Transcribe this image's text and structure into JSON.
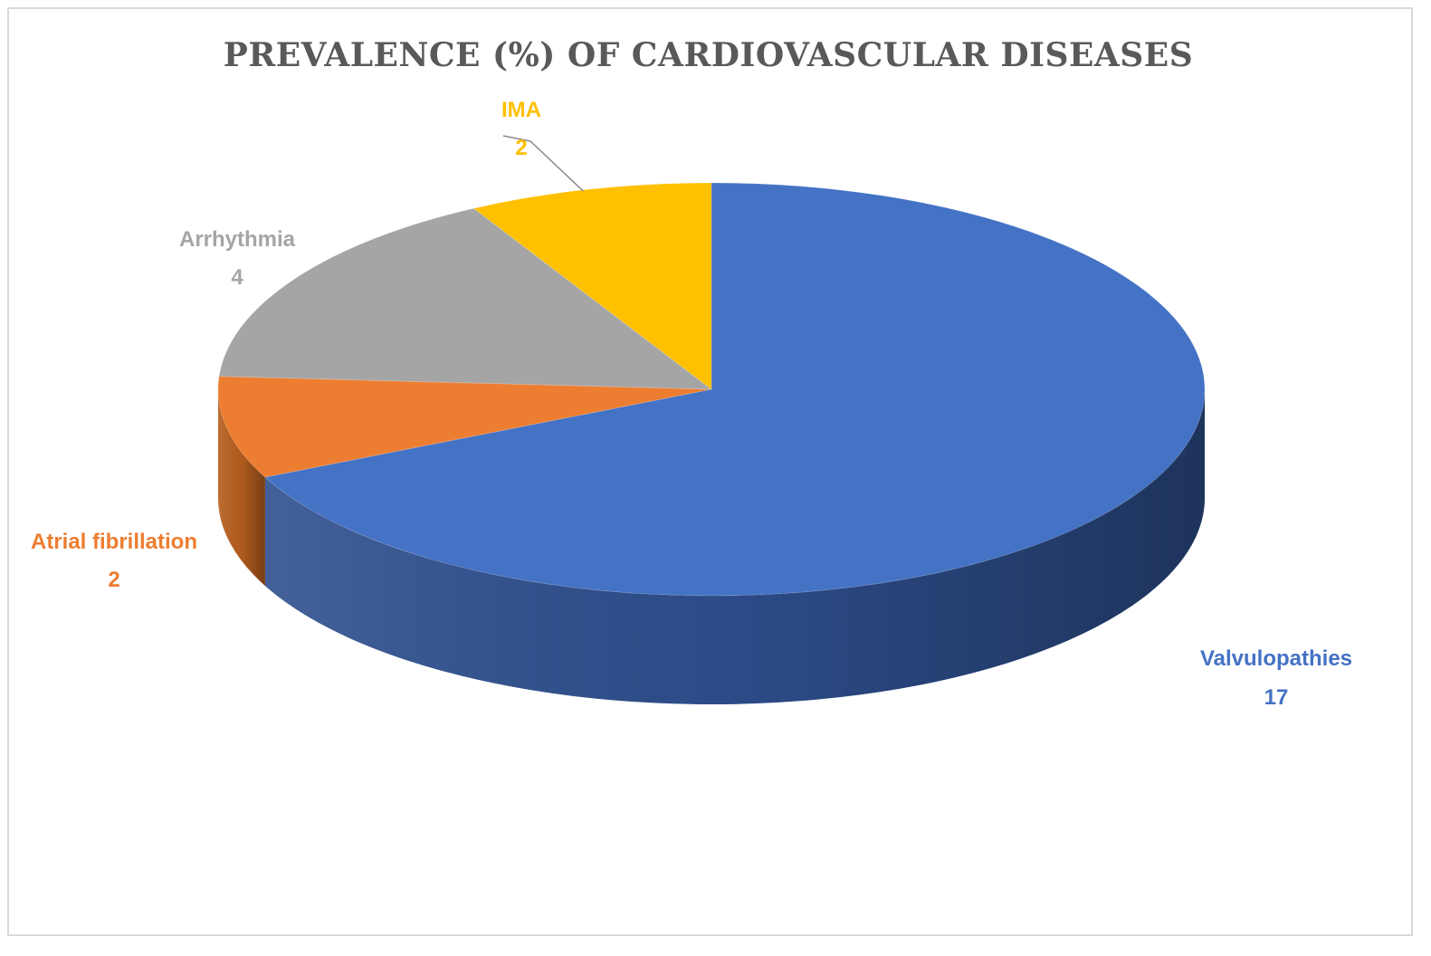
{
  "chart_data": {
    "type": "pie",
    "title": "PREVALENCE (%) OF CARDIOVASCULAR DISEASES",
    "categories": [
      "Valvulopathies",
      "Atrial fibrillation",
      "Arrhythmia",
      "IMA"
    ],
    "values": [
      17,
      2,
      4,
      2
    ],
    "colors": [
      "#4472C4",
      "#ED7D31",
      "#A5A5A5",
      "#FFC000"
    ],
    "side_colors": [
      "#2E4F8E",
      "#B85F1E",
      "#7A7A7A",
      "#C79400"
    ],
    "legend": "none",
    "data_labels": [
      {
        "name": "Valvulopathies",
        "value": "17"
      },
      {
        "name": "Atrial fibrillation",
        "value": "2"
      },
      {
        "name": "Arrhythmia",
        "value": "4"
      },
      {
        "name": "IMA",
        "value": "2"
      }
    ]
  }
}
